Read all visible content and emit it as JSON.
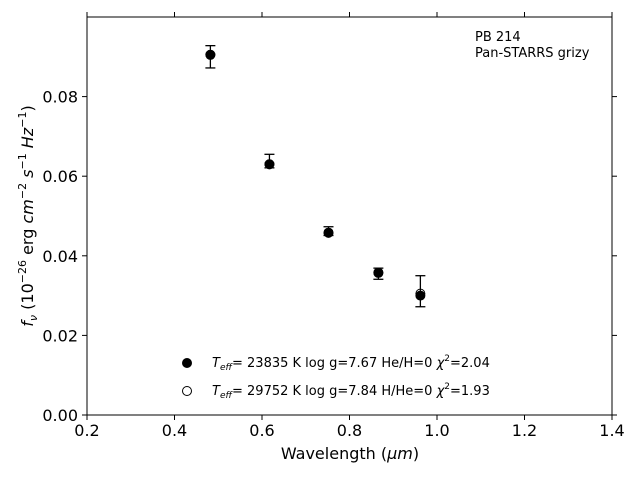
{
  "chart_data": {
    "type": "scatter",
    "xlabel_text": "Wavelength (",
    "xlabel_unit": "μm",
    "xlabel_close": ")",
    "ylabel_f": "f",
    "ylabel_sub": "ν",
    "ylabel_mid1": " (10",
    "ylabel_exp1": "−26",
    "ylabel_mid2": " erg ",
    "ylabel_cm": "cm",
    "ylabel_exp2": "−2",
    "ylabel_s": " s",
    "ylabel_exp3": "−1",
    "ylabel_hz": " Hz",
    "ylabel_exp4": "−1",
    "ylabel_close": ")",
    "xlim": [
      0.2,
      1.4
    ],
    "ylim": [
      0.0,
      0.1
    ],
    "xticks": [
      0.2,
      0.4,
      0.6,
      0.8,
      1.0,
      1.2,
      1.4
    ],
    "xtick_labels": [
      "0.2",
      "0.4",
      "0.6",
      "0.8",
      "1.0",
      "1.2",
      "1.4"
    ],
    "yticks": [
      0.0,
      0.02,
      0.04,
      0.06,
      0.08
    ],
    "ytick_labels": [
      "0.00",
      "0.02",
      "0.04",
      "0.06",
      "0.08"
    ],
    "annotation": [
      "PB 214",
      "Pan-STARRS grizy"
    ],
    "observed": {
      "x": [
        0.482,
        0.617,
        0.752,
        0.866,
        0.962
      ],
      "y": [
        0.09,
        0.0638,
        0.0462,
        0.0355,
        0.0311
      ],
      "err": [
        0.0028,
        0.0017,
        0.0011,
        0.0014,
        0.0039
      ]
    },
    "series": [
      {
        "marker": "filled",
        "x": [
          0.482,
          0.617,
          0.752,
          0.866,
          0.962
        ],
        "y": [
          0.0905,
          0.063,
          0.0458,
          0.0358,
          0.03
        ],
        "legend": {
          "T": "T",
          "Tsub": "eff",
          "rest": "= 23835 K  log g=7.67  He/H=0  ",
          "chi": "χ",
          "chisup": "2",
          "chirest": "=2.04"
        }
      },
      {
        "marker": "open",
        "x": [
          0.482,
          0.617,
          0.752,
          0.866,
          0.962
        ],
        "y": [
          0.0905,
          0.063,
          0.0458,
          0.0357,
          0.0305
        ],
        "legend": {
          "T": "T",
          "Tsub": "eff",
          "rest": "= 29752 K  log g=7.84  H/He=0  ",
          "chi": "χ",
          "chisup": "2",
          "chirest": "=1.93"
        }
      }
    ]
  }
}
